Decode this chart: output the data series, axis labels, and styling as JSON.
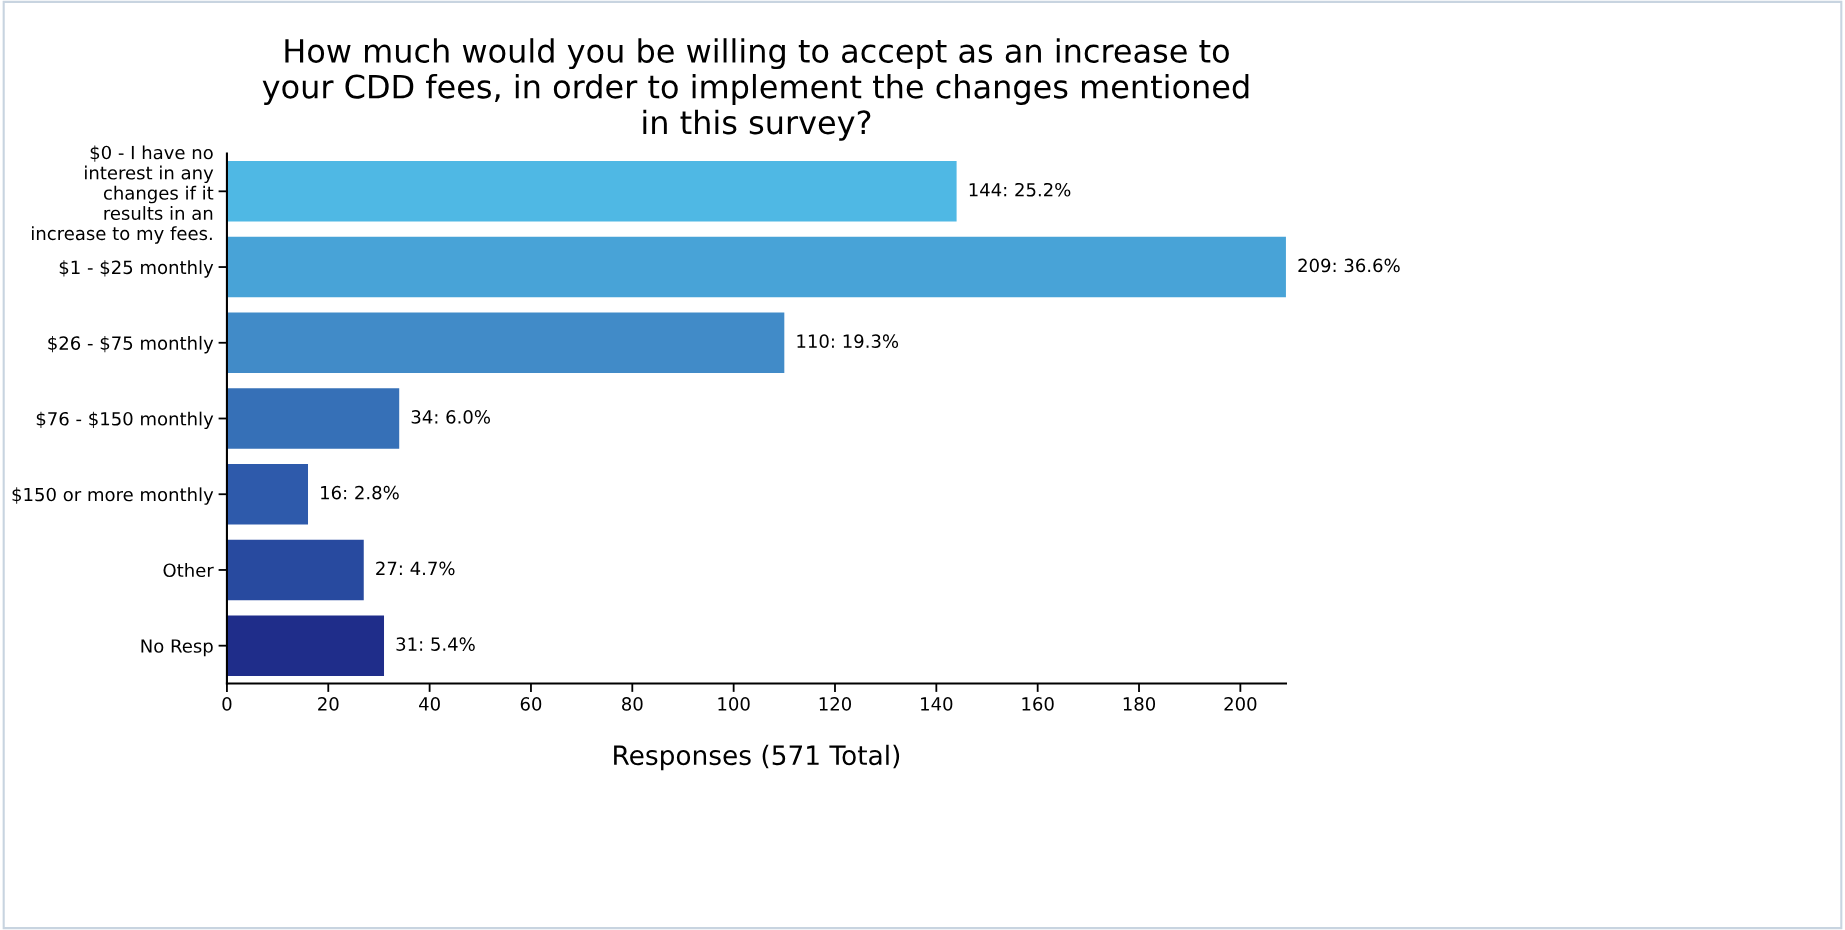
{
  "chart_data": {
    "type": "bar",
    "orientation": "horizontal",
    "title": "How much would you be willing to accept as an increase to\nyour CDD fees, in order to implement the changes mentioned\nin this survey?",
    "xlabel": "Responses (571 Total)",
    "categories": [
      "$0 - I have no\ninterest in any\nchanges if it\nresults in an\nincrease to my fees.",
      "$1 - $25 monthly",
      "$26 - $75 monthly",
      "$76 - $150 monthly",
      "$150 or more monthly",
      "Other",
      "No Resp"
    ],
    "values": [
      144,
      209,
      110,
      34,
      16,
      27,
      31
    ],
    "value_labels": [
      "144: 25.2%",
      "209: 36.6%",
      "110: 19.3%",
      "34: 6.0%",
      "16: 2.8%",
      "27: 4.7%",
      "31: 5.4%"
    ],
    "colors": [
      "#4fb8e4",
      "#48a3d7",
      "#418bc8",
      "#3670b7",
      "#2e5aab",
      "#284a9f",
      "#1f2d8a"
    ],
    "xlim": [
      0,
      209
    ],
    "xticks": [
      0,
      20,
      40,
      60,
      80,
      100,
      120,
      140,
      160,
      180,
      200
    ],
    "grid": false
  }
}
